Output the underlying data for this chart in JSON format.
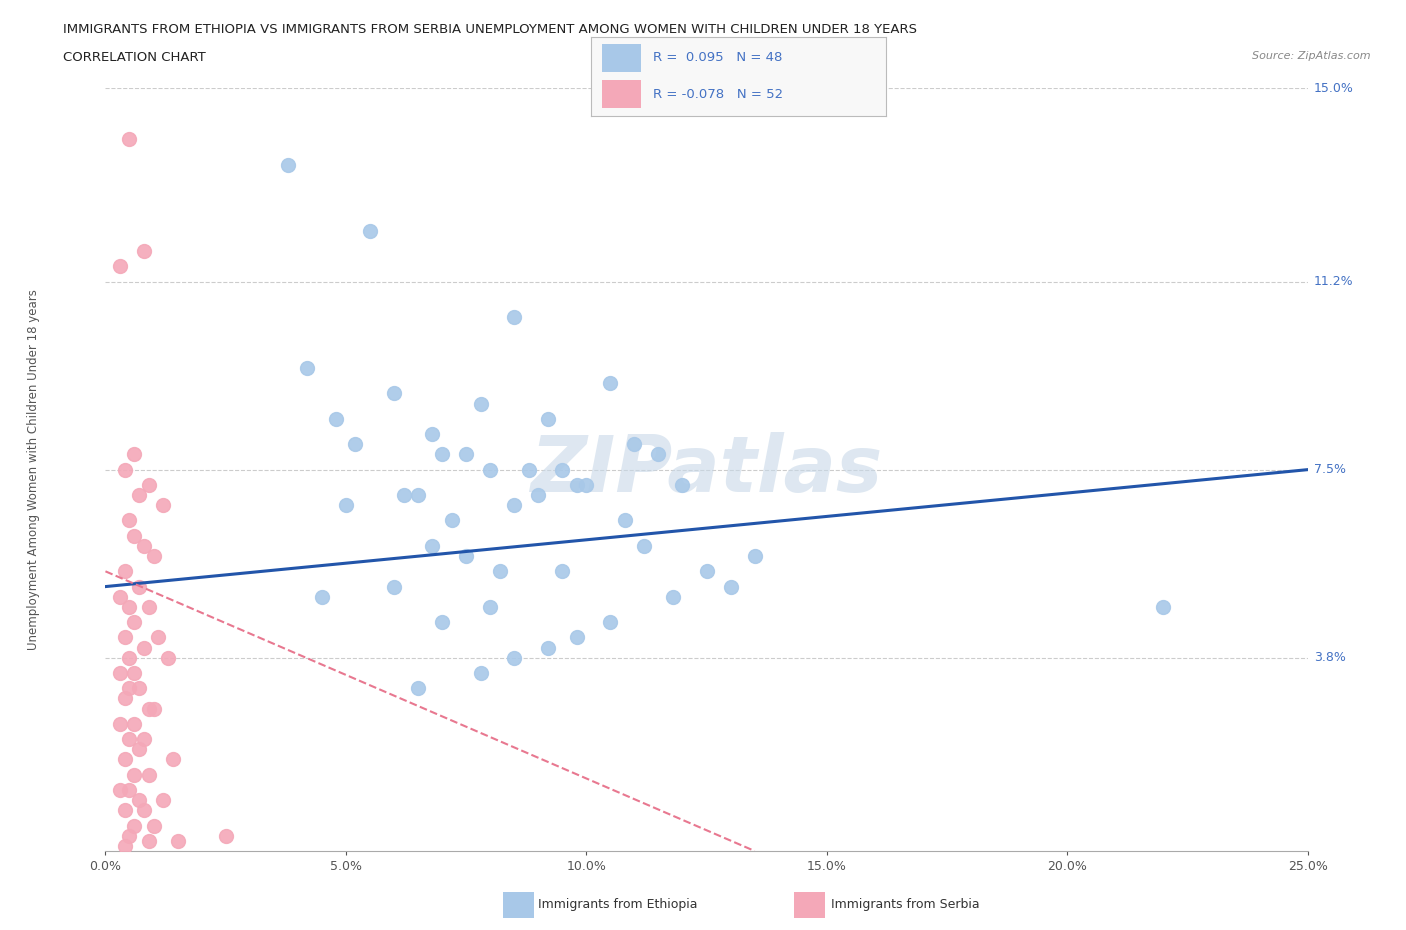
{
  "title_line1": "IMMIGRANTS FROM ETHIOPIA VS IMMIGRANTS FROM SERBIA UNEMPLOYMENT AMONG WOMEN WITH CHILDREN UNDER 18 YEARS",
  "title_line2": "CORRELATION CHART",
  "source": "Source: ZipAtlas.com",
  "ylabel": "Unemployment Among Women with Children Under 18 years",
  "xlim": [
    0.0,
    25.0
  ],
  "ylim": [
    0.0,
    15.0
  ],
  "xticklabels": [
    "0.0%",
    "5.0%",
    "10.0%",
    "15.0%",
    "20.0%",
    "25.0%"
  ],
  "xtick_vals": [
    0,
    5,
    10,
    15,
    20,
    25
  ],
  "ytick_vals": [
    3.8,
    7.5,
    11.2,
    15.0
  ],
  "ytick_labels": [
    "3.8%",
    "7.5%",
    "11.2%",
    "15.0%"
  ],
  "grid_color": "#cccccc",
  "background_color": "#ffffff",
  "ethiopia_color": "#a8c8e8",
  "serbia_color": "#f4a8b8",
  "ethiopia_line_color": "#2255aa",
  "serbia_line_color": "#e87890",
  "legend_text_color": "#4472c4",
  "watermark_color": "#c8d8e8",
  "ethiopia_scatter_x": [
    3.8,
    5.5,
    8.5,
    4.2,
    6.0,
    7.8,
    4.8,
    6.8,
    5.2,
    7.0,
    9.2,
    8.0,
    10.5,
    9.8,
    6.5,
    7.5,
    8.8,
    11.0,
    6.2,
    5.0,
    9.5,
    10.0,
    7.2,
    8.5,
    11.5,
    6.8,
    9.0,
    7.5,
    12.0,
    10.8,
    8.2,
    4.5,
    6.0,
    9.5,
    11.2,
    8.0,
    7.0,
    13.5,
    12.5,
    9.8,
    11.8,
    8.5,
    10.5,
    13.0,
    22.0,
    7.8,
    9.2,
    6.5
  ],
  "ethiopia_scatter_y": [
    13.5,
    12.2,
    10.5,
    9.5,
    9.0,
    8.8,
    8.5,
    8.2,
    8.0,
    7.8,
    8.5,
    7.5,
    9.2,
    7.2,
    7.0,
    7.8,
    7.5,
    8.0,
    7.0,
    6.8,
    7.5,
    7.2,
    6.5,
    6.8,
    7.8,
    6.0,
    7.0,
    5.8,
    7.2,
    6.5,
    5.5,
    5.0,
    5.2,
    5.5,
    6.0,
    4.8,
    4.5,
    5.8,
    5.5,
    4.2,
    5.0,
    3.8,
    4.5,
    5.2,
    4.8,
    3.5,
    4.0,
    3.2
  ],
  "serbia_scatter_x": [
    0.5,
    0.8,
    0.3,
    0.6,
    0.4,
    0.9,
    0.7,
    1.2,
    0.5,
    0.6,
    0.8,
    1.0,
    0.4,
    0.7,
    0.3,
    0.9,
    0.5,
    0.6,
    1.1,
    0.4,
    0.8,
    0.5,
    1.3,
    0.6,
    0.3,
    0.7,
    0.5,
    0.4,
    0.9,
    1.0,
    0.6,
    0.3,
    0.8,
    0.5,
    0.7,
    1.4,
    0.4,
    0.6,
    0.9,
    0.5,
    0.3,
    0.7,
    1.2,
    0.4,
    0.8,
    0.6,
    1.0,
    2.5,
    0.5,
    0.9,
    1.5,
    0.4
  ],
  "serbia_scatter_y": [
    14.0,
    11.8,
    11.5,
    7.8,
    7.5,
    7.2,
    7.0,
    6.8,
    6.5,
    6.2,
    6.0,
    5.8,
    5.5,
    5.2,
    5.0,
    4.8,
    4.8,
    4.5,
    4.2,
    4.2,
    4.0,
    3.8,
    3.8,
    3.5,
    3.5,
    3.2,
    3.2,
    3.0,
    2.8,
    2.8,
    2.5,
    2.5,
    2.2,
    2.2,
    2.0,
    1.8,
    1.8,
    1.5,
    1.5,
    1.2,
    1.2,
    1.0,
    1.0,
    0.8,
    0.8,
    0.5,
    0.5,
    0.3,
    0.3,
    0.2,
    0.2,
    0.1
  ],
  "eth_line_x0": 0,
  "eth_line_y0": 5.2,
  "eth_line_x1": 25,
  "eth_line_y1": 7.5,
  "ser_line_x0": 0,
  "ser_line_y0": 5.5,
  "ser_line_x1": 13.5,
  "ser_line_y1": 0.0
}
